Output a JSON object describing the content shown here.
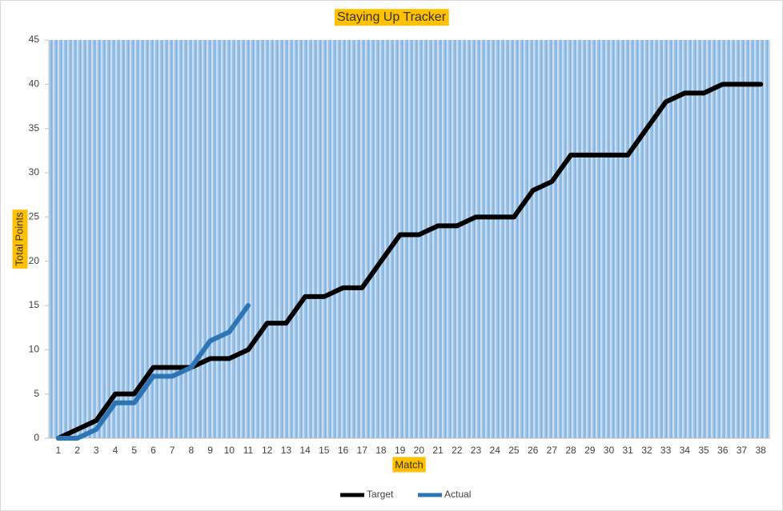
{
  "chart_data": {
    "type": "line",
    "title": "Staying Up Tracker",
    "xlabel": "Match",
    "ylabel": "Total Points",
    "categories": [
      1,
      2,
      3,
      4,
      5,
      6,
      7,
      8,
      9,
      10,
      11,
      12,
      13,
      14,
      15,
      16,
      17,
      18,
      19,
      20,
      21,
      22,
      23,
      24,
      25,
      26,
      27,
      28,
      29,
      30,
      31,
      32,
      33,
      34,
      35,
      36,
      37,
      38
    ],
    "series": [
      {
        "name": "Target",
        "color": "#000000",
        "values": [
          0,
          1,
          2,
          5,
          5,
          8,
          8,
          8,
          9,
          9,
          10,
          13,
          13,
          16,
          16,
          17,
          17,
          20,
          23,
          23,
          24,
          24,
          25,
          25,
          25,
          28,
          29,
          32,
          32,
          32,
          32,
          35,
          38,
          39,
          39,
          40,
          40,
          40
        ]
      },
      {
        "name": "Actual",
        "color": "#2e75b6",
        "values": [
          0,
          0,
          1,
          4,
          4,
          7,
          7,
          8,
          11,
          12,
          15,
          null,
          null,
          null,
          null,
          null,
          null,
          null,
          null,
          null,
          null,
          null,
          null,
          null,
          null,
          null,
          null,
          null,
          null,
          null,
          null,
          null,
          null,
          null,
          null,
          null,
          null,
          null
        ]
      }
    ],
    "ylim": [
      0,
      45
    ],
    "yticks": [
      0,
      5,
      10,
      15,
      20,
      25,
      30,
      35,
      40,
      45
    ],
    "grid": false,
    "legend": "bottom"
  }
}
